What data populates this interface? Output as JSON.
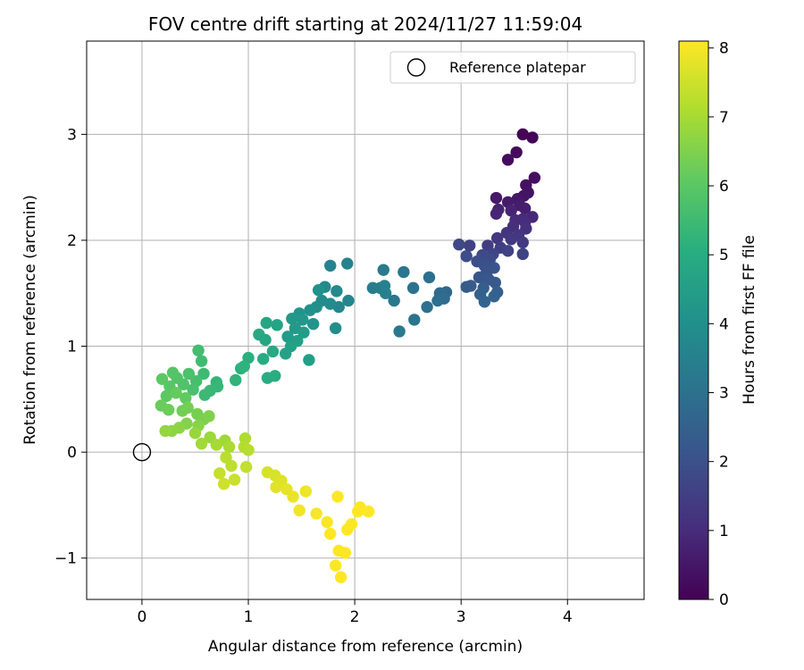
{
  "chart_data": {
    "type": "scatter",
    "title": "FOV centre drift starting at 2024/11/27 11:59:04",
    "xlabel": "Angular distance from reference (arcmin)",
    "ylabel": "Rotation from reference (arcmin)",
    "xlim": [
      -0.52,
      4.72
    ],
    "ylim": [
      -1.39,
      3.88
    ],
    "xticks": [
      0,
      1,
      2,
      3,
      4
    ],
    "yticks": [
      -1,
      0,
      1,
      2,
      3
    ],
    "xtick_labels": [
      "0",
      "1",
      "2",
      "3",
      "4"
    ],
    "ytick_labels": [
      "−1",
      "0",
      "1",
      "2",
      "3"
    ],
    "grid": true,
    "colormap": "viridis",
    "colorbar": {
      "label": "Hours from first FF file",
      "min": 0,
      "max": 8.1,
      "ticks": [
        0,
        1,
        2,
        3,
        4,
        5,
        6,
        7,
        8
      ],
      "tick_labels": [
        "0",
        "1",
        "2",
        "3",
        "4",
        "5",
        "6",
        "7",
        "8"
      ]
    },
    "legend": {
      "position": "top-right",
      "entries": [
        "Reference platepar"
      ]
    },
    "reference_point": {
      "x": 0,
      "y": 0,
      "name": "Reference platepar",
      "marker": "open-circle"
    },
    "series": [
      {
        "points": [
          [
            3.58,
            3.0,
            0.05
          ],
          [
            3.67,
            2.97,
            0.1
          ],
          [
            3.52,
            2.83,
            0.2
          ],
          [
            3.44,
            2.76,
            0.25
          ],
          [
            3.69,
            2.59,
            0.3
          ],
          [
            3.61,
            2.52,
            0.35
          ],
          [
            3.63,
            2.45,
            0.4
          ],
          [
            3.59,
            2.42,
            0.45
          ],
          [
            3.53,
            2.39,
            0.5
          ],
          [
            3.33,
            2.4,
            0.55
          ],
          [
            3.44,
            2.36,
            0.6
          ],
          [
            3.55,
            2.33,
            0.65
          ],
          [
            3.6,
            2.3,
            0.7
          ],
          [
            3.35,
            2.29,
            0.75
          ],
          [
            3.47,
            2.28,
            0.8
          ],
          [
            3.33,
            2.25,
            0.85
          ],
          [
            3.67,
            2.22,
            0.9
          ],
          [
            3.58,
            2.2,
            0.95
          ],
          [
            3.51,
            2.19,
            1.0
          ],
          [
            3.6,
            2.17,
            1.05
          ],
          [
            3.49,
            2.13,
            1.1
          ],
          [
            3.61,
            2.11,
            1.15
          ],
          [
            3.43,
            2.07,
            1.2
          ],
          [
            3.54,
            2.05,
            1.25
          ],
          [
            3.34,
            2.02,
            1.3
          ],
          [
            3.47,
            2.01,
            1.35
          ],
          [
            3.58,
            1.98,
            1.4
          ],
          [
            3.25,
            1.95,
            1.45
          ],
          [
            3.37,
            1.93,
            1.5
          ],
          [
            3.08,
            1.95,
            1.55
          ],
          [
            3.44,
            1.9,
            1.6
          ],
          [
            3.58,
            1.87,
            1.65
          ],
          [
            3.3,
            1.87,
            1.7
          ],
          [
            2.98,
            1.96,
            1.75
          ],
          [
            3.2,
            1.86,
            1.8
          ],
          [
            3.27,
            1.82,
            1.85
          ],
          [
            3.05,
            1.85,
            1.9
          ],
          [
            3.15,
            1.8,
            1.95
          ],
          [
            3.22,
            1.76,
            2.0
          ],
          [
            3.31,
            1.74,
            2.05
          ],
          [
            3.24,
            1.7,
            2.1
          ],
          [
            3.17,
            1.65,
            2.15
          ],
          [
            3.26,
            1.63,
            2.2
          ],
          [
            3.32,
            1.6,
            2.25
          ],
          [
            3.09,
            1.57,
            2.3
          ],
          [
            3.05,
            1.56,
            2.35
          ],
          [
            3.21,
            1.55,
            2.4
          ],
          [
            3.34,
            1.51,
            2.45
          ],
          [
            3.18,
            1.49,
            2.5
          ],
          [
            3.31,
            1.47,
            2.55
          ],
          [
            3.22,
            1.42,
            2.6
          ],
          [
            2.86,
            1.51,
            2.7
          ],
          [
            2.8,
            1.5,
            2.8
          ],
          [
            2.84,
            1.45,
            2.85
          ],
          [
            2.78,
            1.43,
            2.9
          ],
          [
            2.7,
            1.65,
            2.95
          ],
          [
            2.68,
            1.37,
            3.0
          ],
          [
            2.55,
            1.55,
            3.05
          ],
          [
            2.56,
            1.25,
            3.1
          ],
          [
            2.46,
            1.7,
            3.15
          ],
          [
            2.37,
            1.43,
            3.2
          ],
          [
            2.42,
            1.14,
            3.25
          ],
          [
            2.27,
            1.72,
            3.3
          ],
          [
            2.24,
            1.55,
            3.35
          ],
          [
            2.17,
            1.55,
            3.4
          ],
          [
            2.28,
            1.57,
            3.45
          ],
          [
            2.29,
            1.5,
            3.5
          ],
          [
            1.93,
            1.78,
            3.55
          ],
          [
            1.77,
            1.76,
            3.6
          ],
          [
            1.94,
            1.43,
            3.65
          ],
          [
            1.85,
            1.37,
            3.7
          ],
          [
            1.83,
            1.52,
            3.75
          ],
          [
            1.72,
            1.56,
            3.8
          ],
          [
            1.77,
            1.4,
            3.85
          ],
          [
            1.69,
            1.43,
            3.9
          ],
          [
            1.82,
            1.17,
            3.95
          ],
          [
            1.64,
            1.37,
            4.0
          ],
          [
            1.66,
            1.53,
            4.05
          ],
          [
            1.58,
            1.34,
            4.1
          ],
          [
            1.61,
            1.21,
            4.15
          ],
          [
            1.48,
            1.31,
            4.2
          ],
          [
            1.51,
            1.25,
            4.25
          ],
          [
            1.41,
            1.26,
            4.3
          ],
          [
            1.44,
            1.17,
            4.35
          ],
          [
            1.37,
            1.09,
            4.4
          ],
          [
            1.52,
            1.13,
            4.45
          ],
          [
            1.57,
            0.87,
            4.5
          ],
          [
            1.46,
            1.05,
            4.55
          ],
          [
            1.4,
            1.0,
            4.6
          ],
          [
            1.35,
            0.93,
            4.65
          ],
          [
            1.27,
            1.2,
            4.7
          ],
          [
            1.17,
            1.22,
            4.75
          ],
          [
            1.16,
            1.06,
            4.8
          ],
          [
            1.1,
            1.11,
            4.85
          ],
          [
            1.23,
            0.95,
            4.9
          ],
          [
            1.14,
            0.88,
            4.95
          ],
          [
            1.18,
            0.7,
            5.0
          ],
          [
            1.25,
            0.72,
            5.05
          ],
          [
            1.0,
            0.89,
            5.1
          ],
          [
            0.93,
            0.79,
            5.15
          ],
          [
            0.96,
            0.81,
            5.2
          ],
          [
            0.88,
            0.68,
            5.25
          ],
          [
            0.7,
            0.66,
            5.3
          ],
          [
            0.71,
            0.62,
            5.35
          ],
          [
            0.64,
            0.58,
            5.4
          ],
          [
            0.59,
            0.54,
            5.45
          ],
          [
            0.58,
            0.74,
            5.5
          ],
          [
            0.56,
            0.86,
            5.55
          ],
          [
            0.53,
            0.96,
            5.6
          ],
          [
            0.51,
            0.67,
            5.65
          ],
          [
            0.48,
            0.59,
            5.7
          ],
          [
            0.44,
            0.74,
            5.75
          ],
          [
            0.39,
            0.64,
            5.8
          ],
          [
            0.33,
            0.7,
            5.85
          ],
          [
            0.29,
            0.75,
            5.9
          ],
          [
            0.26,
            0.62,
            5.95
          ],
          [
            0.19,
            0.69,
            6.0
          ],
          [
            0.23,
            0.53,
            6.05
          ],
          [
            0.41,
            0.51,
            6.1
          ],
          [
            0.32,
            0.56,
            6.15
          ],
          [
            0.18,
            0.44,
            6.2
          ],
          [
            0.25,
            0.4,
            6.25
          ],
          [
            0.38,
            0.39,
            6.3
          ],
          [
            0.43,
            0.42,
            6.35
          ],
          [
            0.52,
            0.36,
            6.4
          ],
          [
            0.58,
            0.31,
            6.45
          ],
          [
            0.63,
            0.34,
            6.5
          ],
          [
            0.42,
            0.27,
            6.55
          ],
          [
            0.53,
            0.25,
            6.6
          ],
          [
            0.35,
            0.23,
            6.65
          ],
          [
            0.28,
            0.2,
            6.7
          ],
          [
            0.22,
            0.2,
            6.75
          ],
          [
            0.5,
            0.18,
            6.8
          ],
          [
            0.64,
            0.14,
            6.85
          ],
          [
            0.78,
            0.11,
            6.9
          ],
          [
            0.56,
            0.08,
            6.95
          ],
          [
            0.7,
            0.07,
            7.0
          ],
          [
            0.82,
            0.05,
            7.05
          ],
          [
            0.97,
            0.13,
            7.1
          ],
          [
            0.96,
            0.05,
            7.15
          ],
          [
            1.0,
            0.02,
            7.2
          ],
          [
            0.79,
            -0.05,
            7.25
          ],
          [
            0.84,
            -0.13,
            7.3
          ],
          [
            0.98,
            -0.14,
            7.35
          ],
          [
            0.73,
            -0.2,
            7.4
          ],
          [
            0.87,
            -0.26,
            7.45
          ],
          [
            0.77,
            -0.3,
            7.5
          ],
          [
            1.18,
            -0.19,
            7.6
          ],
          [
            1.25,
            -0.22,
            7.65
          ],
          [
            1.31,
            -0.27,
            7.7
          ],
          [
            1.26,
            -0.33,
            7.75
          ],
          [
            1.36,
            -0.35,
            7.8
          ],
          [
            1.42,
            -0.42,
            7.85
          ],
          [
            1.54,
            -0.37,
            7.9
          ],
          [
            1.48,
            -0.55,
            7.95
          ],
          [
            1.64,
            -0.58,
            8.0
          ],
          [
            1.74,
            -0.66,
            8.05
          ],
          [
            1.84,
            -0.42,
            8.1
          ],
          [
            1.77,
            -0.77,
            8.1
          ],
          [
            1.85,
            -0.93,
            8.1
          ],
          [
            1.82,
            -1.07,
            8.1
          ],
          [
            1.87,
            -1.18,
            8.1
          ],
          [
            1.91,
            -0.95,
            8.1
          ],
          [
            2.03,
            -0.56,
            8.1
          ],
          [
            2.13,
            -0.56,
            8.1
          ],
          [
            2.05,
            -0.52,
            8.1
          ],
          [
            1.93,
            -0.73,
            8.1
          ],
          [
            1.97,
            -0.68,
            8.1
          ]
        ]
      }
    ]
  }
}
